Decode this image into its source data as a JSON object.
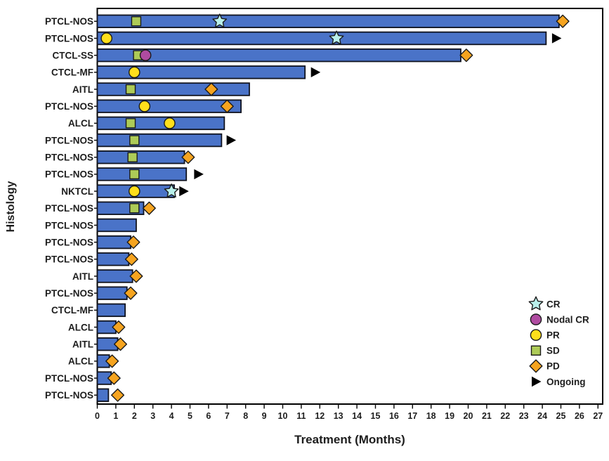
{
  "chart_data": {
    "type": "bar",
    "subtype": "swimmer-plot",
    "orientation": "horizontal",
    "title": "",
    "xlabel": "Treatment (Months)",
    "ylabel": "Histology",
    "xlim": [
      0,
      27
    ],
    "xticks": [
      0,
      1,
      2,
      3,
      4,
      5,
      6,
      7,
      8,
      9,
      10,
      11,
      12,
      13,
      14,
      15,
      16,
      17,
      18,
      19,
      20,
      21,
      22,
      23,
      24,
      25,
      26,
      27
    ],
    "grid": false,
    "legend": {
      "position": "inside-right",
      "entries": [
        {
          "label": "CR",
          "marker": "star"
        },
        {
          "label": "Nodal CR",
          "marker": "circle"
        },
        {
          "label": "PR",
          "marker": "circle"
        },
        {
          "label": "SD",
          "marker": "square"
        },
        {
          "label": "PD",
          "marker": "diamond"
        },
        {
          "label": "Ongoing",
          "marker": "triangle"
        }
      ]
    },
    "rows": [
      {
        "histology": "PTCL-NOS",
        "duration_months": 24.9,
        "ongoing": false,
        "markers": [
          {
            "type": "SD",
            "month": 2.1
          },
          {
            "type": "CR",
            "month": 6.6
          },
          {
            "type": "PD",
            "month": 25.1
          }
        ]
      },
      {
        "histology": "PTCL-NOS",
        "duration_months": 24.2,
        "ongoing": true,
        "ongoing_month": 24.75,
        "markers": [
          {
            "type": "PR",
            "month": 0.5
          },
          {
            "type": "CR",
            "month": 12.9
          }
        ]
      },
      {
        "histology": "CTCL-SS",
        "duration_months": 19.6,
        "ongoing": false,
        "markers": [
          {
            "type": "SD",
            "month": 2.2
          },
          {
            "type": "Nodal CR",
            "month": 2.6
          },
          {
            "type": "PD",
            "month": 19.9
          }
        ]
      },
      {
        "histology": "CTCL-MF",
        "duration_months": 11.2,
        "ongoing": true,
        "ongoing_month": 11.75,
        "markers": [
          {
            "type": "PR",
            "month": 2.0
          }
        ]
      },
      {
        "histology": "AITL",
        "duration_months": 8.2,
        "ongoing": false,
        "markers": [
          {
            "type": "SD",
            "month": 1.8
          },
          {
            "type": "PD",
            "month": 6.15
          }
        ]
      },
      {
        "histology": "PTCL-NOS",
        "duration_months": 7.75,
        "ongoing": false,
        "markers": [
          {
            "type": "PR",
            "month": 2.55
          },
          {
            "type": "PD",
            "month": 7.0
          }
        ]
      },
      {
        "histology": "ALCL",
        "duration_months": 6.85,
        "ongoing": false,
        "markers": [
          {
            "type": "SD",
            "month": 1.8
          },
          {
            "type": "PR",
            "month": 3.9
          }
        ]
      },
      {
        "histology": "PTCL-NOS",
        "duration_months": 6.7,
        "ongoing": true,
        "ongoing_month": 7.2,
        "markers": [
          {
            "type": "SD",
            "month": 2.0
          }
        ]
      },
      {
        "histology": "PTCL-NOS",
        "duration_months": 4.7,
        "ongoing": false,
        "markers": [
          {
            "type": "SD",
            "month": 1.9
          },
          {
            "type": "PD",
            "month": 4.9
          }
        ]
      },
      {
        "histology": "PTCL-NOS",
        "duration_months": 4.8,
        "ongoing": true,
        "ongoing_month": 5.45,
        "markers": [
          {
            "type": "SD",
            "month": 2.0
          }
        ]
      },
      {
        "histology": "NKTCL",
        "duration_months": 4.15,
        "ongoing": true,
        "ongoing_month": 4.65,
        "markers": [
          {
            "type": "PR",
            "month": 2.0
          },
          {
            "type": "CR",
            "month": 4.0
          }
        ]
      },
      {
        "histology": "PTCL-NOS",
        "duration_months": 2.5,
        "ongoing": false,
        "markers": [
          {
            "type": "SD",
            "month": 2.0
          },
          {
            "type": "PD",
            "month": 2.8
          }
        ]
      },
      {
        "histology": "PTCL-NOS",
        "duration_months": 2.1,
        "ongoing": false,
        "markers": []
      },
      {
        "histology": "PTCL-NOS",
        "duration_months": 1.8,
        "ongoing": false,
        "markers": [
          {
            "type": "PD",
            "month": 1.95
          }
        ]
      },
      {
        "histology": "PTCL-NOS",
        "duration_months": 1.7,
        "ongoing": false,
        "markers": [
          {
            "type": "PD",
            "month": 1.85
          }
        ]
      },
      {
        "histology": "AITL",
        "duration_months": 1.9,
        "ongoing": false,
        "markers": [
          {
            "type": "PD",
            "month": 2.1
          }
        ]
      },
      {
        "histology": "PTCL-NOS",
        "duration_months": 1.6,
        "ongoing": false,
        "markers": [
          {
            "type": "PD",
            "month": 1.8
          }
        ]
      },
      {
        "histology": "CTCL-MF",
        "duration_months": 1.5,
        "ongoing": false,
        "markers": []
      },
      {
        "histology": "ALCL",
        "duration_months": 1.0,
        "ongoing": false,
        "markers": [
          {
            "type": "PD",
            "month": 1.15
          }
        ]
      },
      {
        "histology": "AITL",
        "duration_months": 1.1,
        "ongoing": false,
        "markers": [
          {
            "type": "PD",
            "month": 1.25
          }
        ]
      },
      {
        "histology": "ALCL",
        "duration_months": 0.65,
        "ongoing": false,
        "markers": [
          {
            "type": "PD",
            "month": 0.8
          }
        ]
      },
      {
        "histology": "PTCL-NOS",
        "duration_months": 0.75,
        "ongoing": false,
        "markers": [
          {
            "type": "PD",
            "month": 0.9
          }
        ]
      },
      {
        "histology": "PTCL-NOS",
        "duration_months": 0.6,
        "ongoing": false,
        "markers": [
          {
            "type": "PD",
            "month": 1.1
          }
        ]
      }
    ]
  },
  "colors": {
    "bar_fill": "#4a73c8",
    "bar_stroke": "#10131f",
    "frame": "#000000",
    "text": "#1d1d1d",
    "markers": {
      "CR": "#b9f0eb",
      "Nodal CR": "#af4ba1",
      "PR": "#ffdf1b",
      "SD": "#adcb57",
      "PD": "#f6a41f",
      "Ongoing": "#000000"
    },
    "marker_stroke": "#1a1a1a"
  }
}
